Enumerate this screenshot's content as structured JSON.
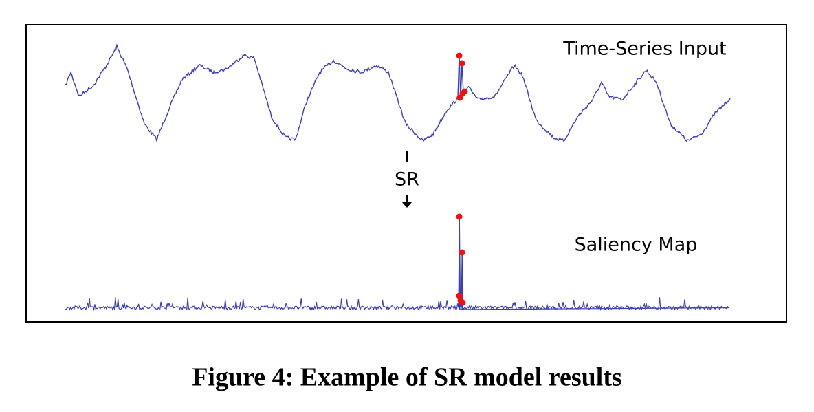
{
  "figure": {
    "input_label": "Time-Series Input",
    "operator": "SR",
    "output_label": "Saliency Map",
    "caption": "Figure 4: Example of SR model results"
  }
}
